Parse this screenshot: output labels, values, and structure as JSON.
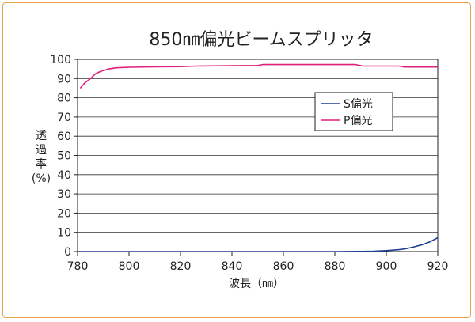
{
  "chart_data": {
    "type": "line",
    "title": "850㎚偏光ビームスプリッタ",
    "xlabel": "波長（㎚）",
    "ylabel_chars": [
      "透",
      "過",
      "率",
      "(%)"
    ],
    "xlim": [
      780,
      920
    ],
    "ylim": [
      0,
      100
    ],
    "xticks": [
      780,
      800,
      820,
      840,
      860,
      880,
      900,
      920
    ],
    "yticks": [
      0,
      10,
      20,
      30,
      40,
      50,
      60,
      70,
      80,
      90,
      100
    ],
    "grid": true,
    "legend_position": "upper-right",
    "series": [
      {
        "name": "S偏光",
        "color": "#1f3f8f",
        "x": [
          780,
          800,
          820,
          840,
          860,
          880,
          890,
          895,
          900,
          905,
          908,
          911,
          914,
          917,
          920
        ],
        "y": [
          0,
          0,
          0,
          0,
          0,
          0,
          0.1,
          0.2,
          0.5,
          1.0,
          1.6,
          2.5,
          3.6,
          5.1,
          7.2
        ]
      },
      {
        "name": "P偏光",
        "color": "#e0207a",
        "x": [
          781,
          783,
          785,
          787,
          789,
          792,
          795,
          800,
          810,
          820,
          826,
          840,
          850,
          852,
          860,
          880,
          888,
          891,
          900,
          905,
          907,
          910,
          920
        ],
        "y": [
          85,
          88,
          90,
          92.5,
          93.8,
          95,
          95.6,
          95.9,
          96.1,
          96.2,
          96.5,
          96.7,
          96.8,
          97.3,
          97.3,
          97.3,
          97.3,
          96.5,
          96.5,
          96.5,
          96.0,
          96.0,
          96.0
        ]
      }
    ]
  }
}
